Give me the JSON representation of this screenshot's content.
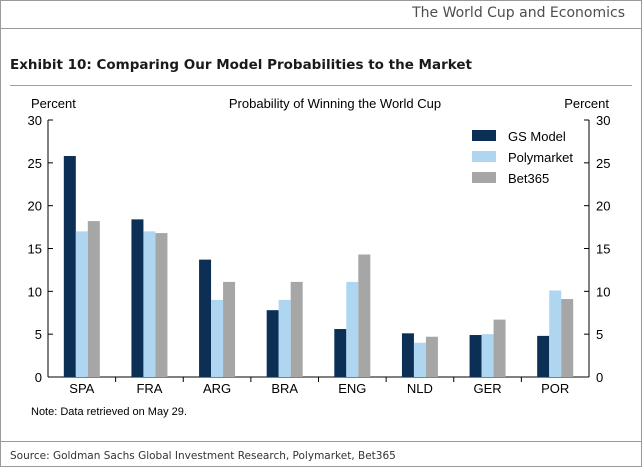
{
  "header": {
    "title": "The World Cup and Economics"
  },
  "exhibit": {
    "title": "Exhibit 10: Comparing Our Model Probabilities to the Market"
  },
  "footer": {
    "source": "Source: Goldman Sachs Global Investment Research, Polymarket, Bet365"
  },
  "colors": {
    "gs_model": "#0b2f55",
    "polymarket": "#aed6f1",
    "bet365": "#a6a6a6"
  },
  "chart_data": {
    "type": "bar",
    "title": "Probability of Winning the World Cup",
    "ylabel_left": "Percent",
    "ylabel_right": "Percent",
    "note": "Note: Data retrieved on May 29.",
    "ylim": [
      0,
      30
    ],
    "yticks": [
      0,
      5,
      10,
      15,
      20,
      25,
      30
    ],
    "legend_position": "top-right",
    "grid": false,
    "categories": [
      "SPA",
      "FRA",
      "ARG",
      "BRA",
      "ENG",
      "NLD",
      "GER",
      "POR"
    ],
    "series": [
      {
        "name": "GS Model",
        "color": "#0b2f55",
        "values": [
          25.8,
          18.4,
          13.7,
          7.8,
          5.6,
          5.1,
          4.9,
          4.8
        ]
      },
      {
        "name": "Polymarket",
        "color": "#aed6f1",
        "values": [
          17.0,
          17.0,
          9.0,
          9.0,
          11.1,
          4.0,
          5.0,
          10.1
        ]
      },
      {
        "name": "Bet365",
        "color": "#a6a6a6",
        "values": [
          18.2,
          16.8,
          11.1,
          11.1,
          14.3,
          4.7,
          6.7,
          9.1
        ]
      }
    ]
  }
}
